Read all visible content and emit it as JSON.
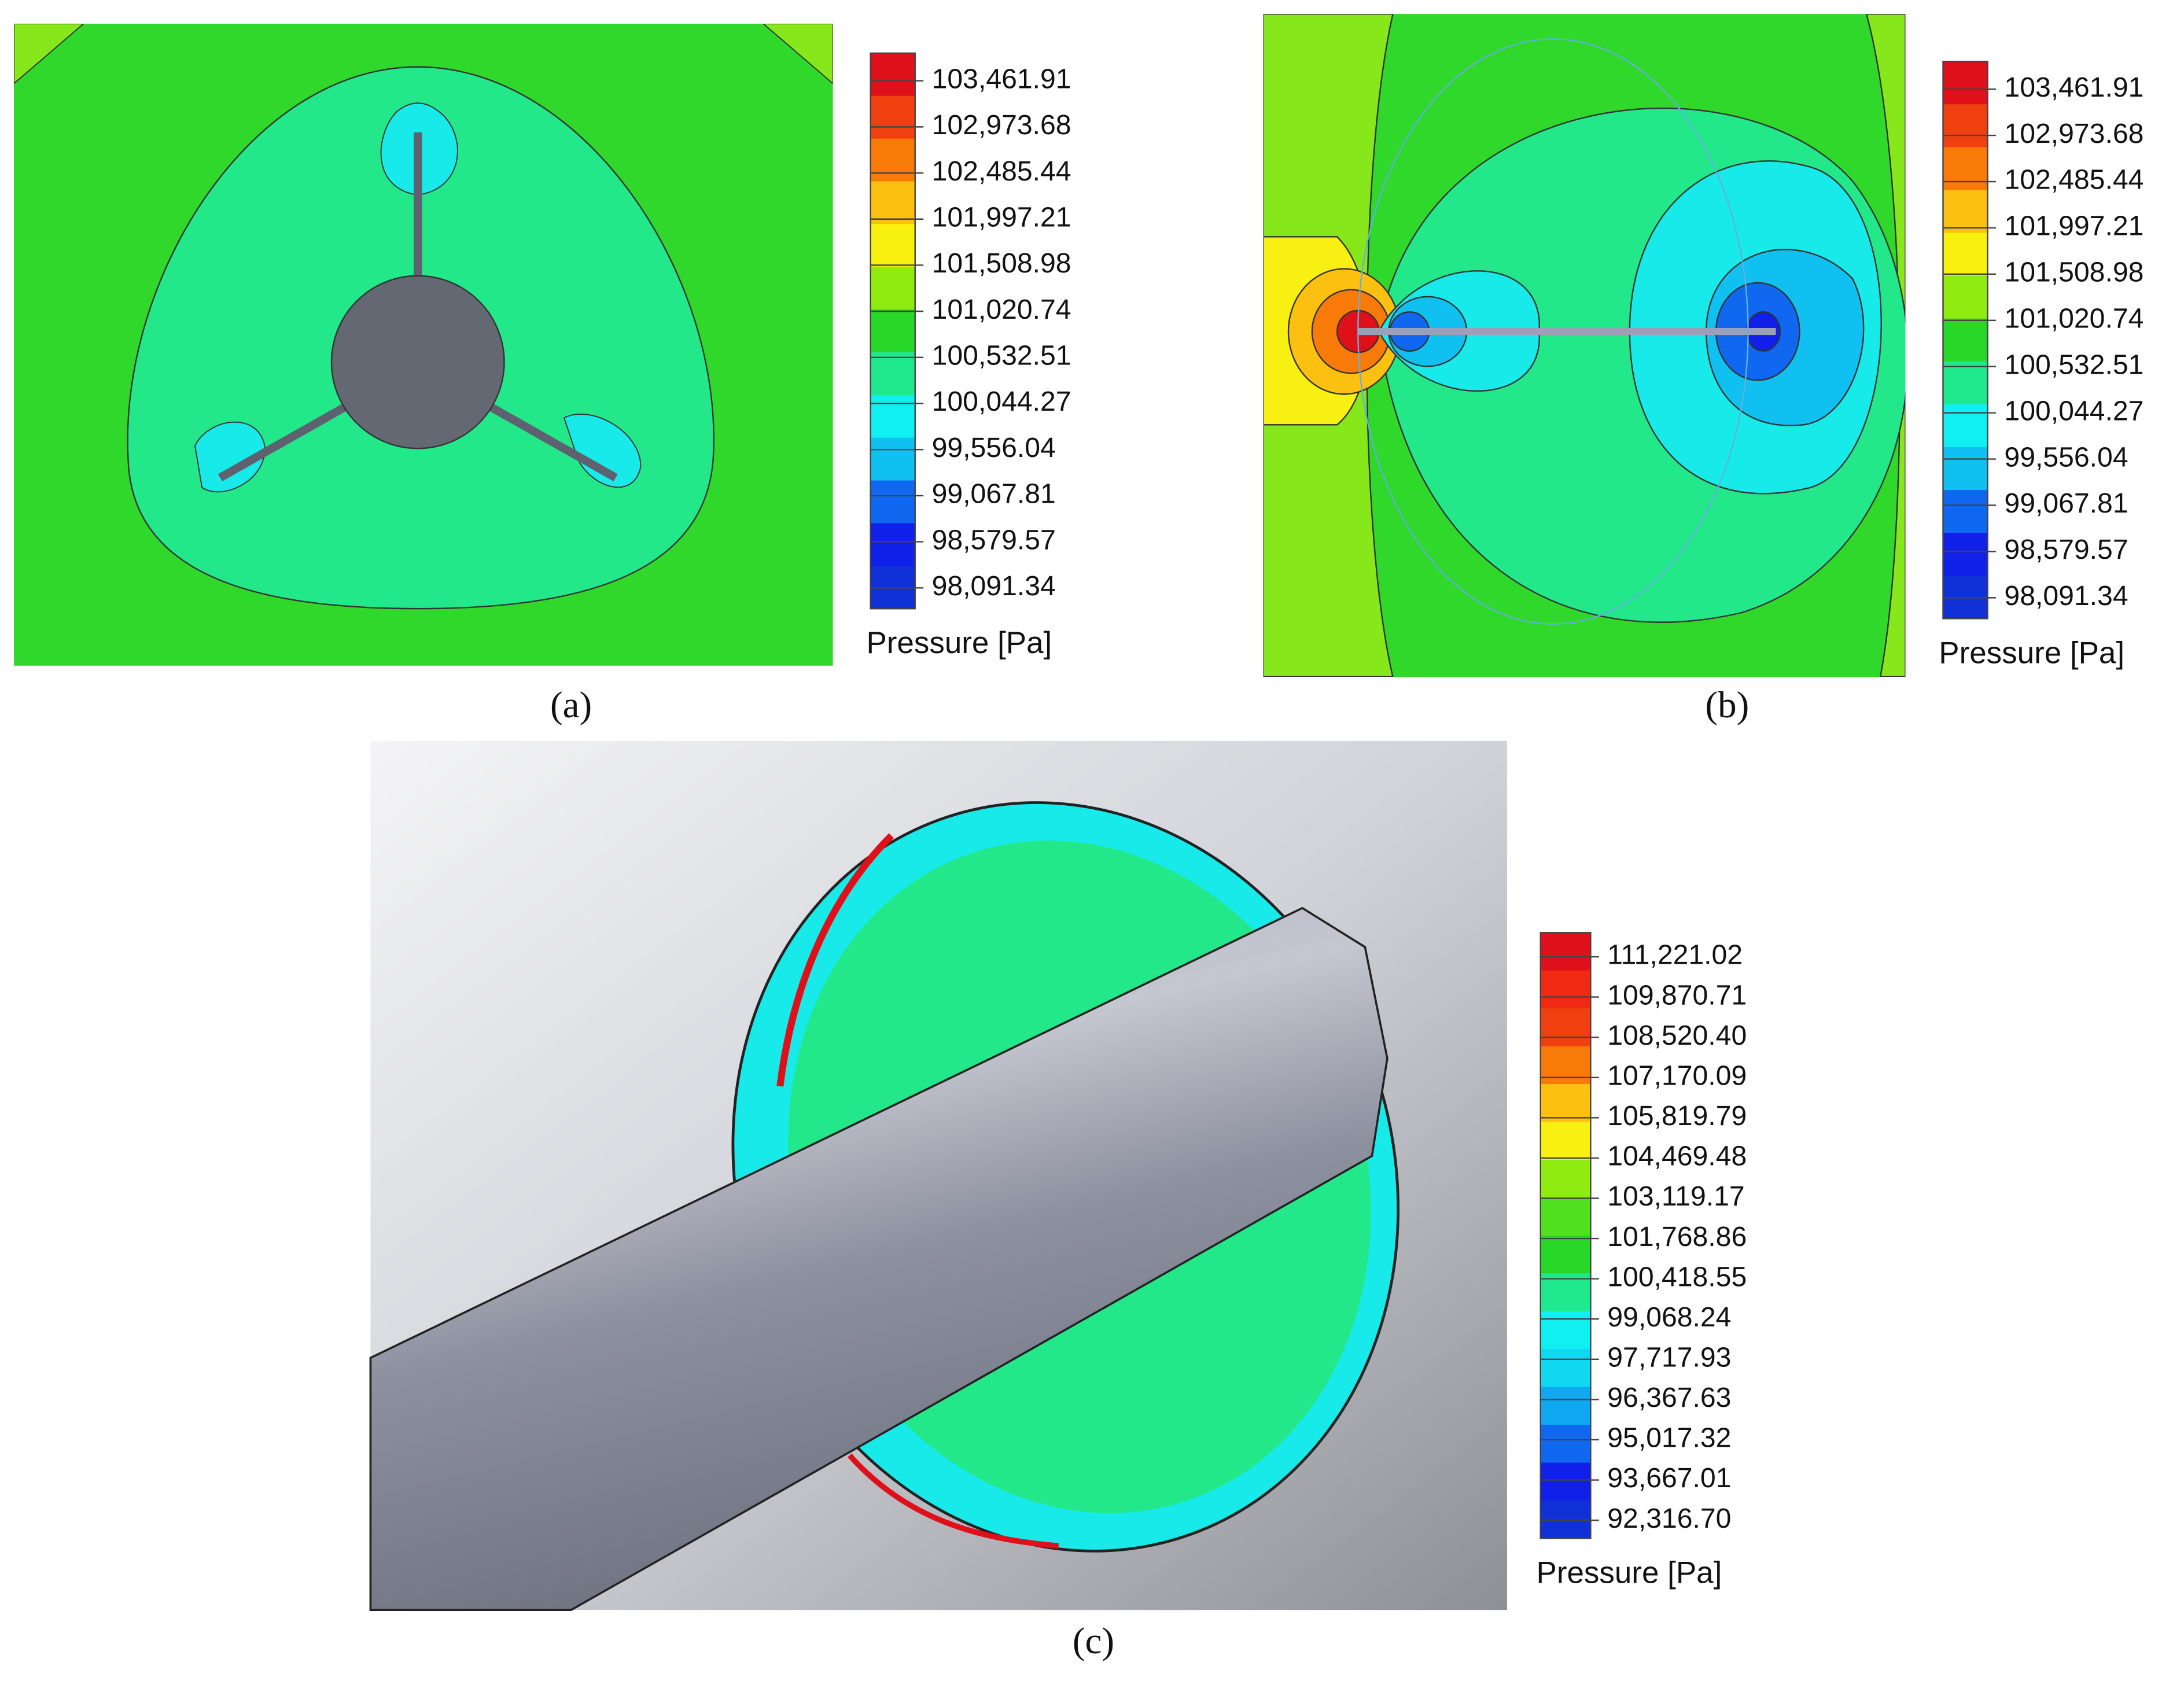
{
  "panels": [
    {
      "caption": "(a)",
      "legend": {
        "title": "Pressure [Pa]",
        "labels": [
          "103,461.91",
          "102,973.68",
          "102,485.44",
          "101,997.21",
          "101,508.98",
          "101,020.74",
          "100,532.51",
          "100,044.27",
          "99,556.04",
          "99,067.81",
          "98,579.57",
          "98,091.34"
        ]
      }
    },
    {
      "caption": "(b)",
      "legend": {
        "title": "Pressure [Pa]",
        "labels": [
          "103,461.91",
          "102,973.68",
          "102,485.44",
          "101,997.21",
          "101,508.98",
          "101,020.74",
          "100,532.51",
          "100,044.27",
          "99,556.04",
          "99,067.81",
          "98,579.57",
          "98,091.34"
        ]
      }
    },
    {
      "caption": "(c)",
      "legend": {
        "title": "Pressure [Pa]",
        "labels": [
          "111,221.02",
          "109,870.71",
          "108,520.40",
          "107,170.09",
          "105,819.79",
          "104,469.48",
          "103,119.17",
          "101,768.86",
          "100,418.55",
          "99,068.24",
          "97,717.93",
          "96,367.63",
          "95,017.32",
          "93,667.01",
          "92,316.70"
        ]
      }
    }
  ]
}
